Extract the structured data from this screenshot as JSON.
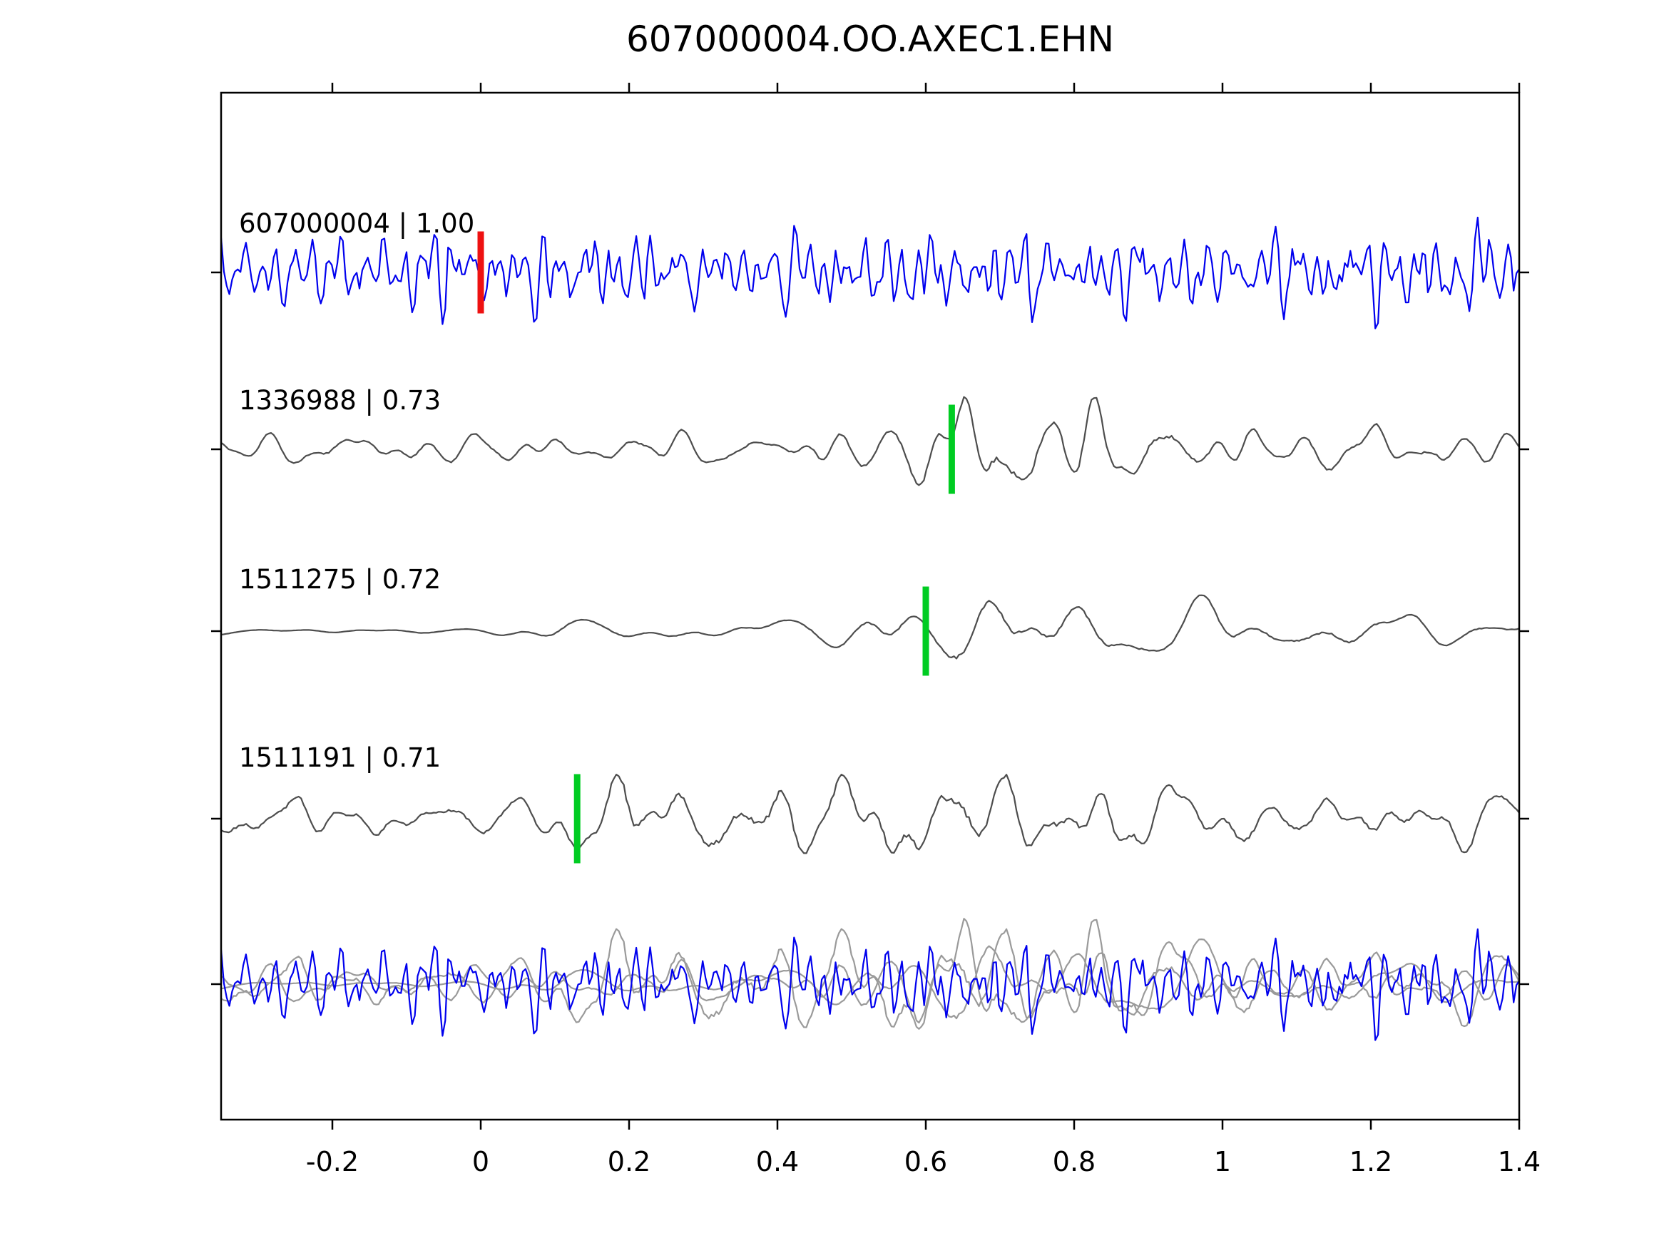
{
  "title": "607000004.OO.AXEC1.EHN",
  "chart_data": {
    "type": "line",
    "title": "607000004.OO.AXEC1.EHN",
    "xlabel": "",
    "ylabel": "",
    "grid": false,
    "legend": "none",
    "xlim": [
      -0.35,
      1.4
    ],
    "xticks": [
      -0.2,
      0,
      0.2,
      0.4,
      0.6,
      0.8,
      1,
      1.2,
      1.4
    ],
    "xtick_labels": [
      "-0.2",
      "0",
      "0.2",
      "0.4",
      "0.6",
      "0.8",
      "1",
      "1.2",
      "1.4"
    ],
    "colors": {
      "target_trace": "#0000ee",
      "template_trace": "#4d4d4d",
      "overlay_template": "#9a9a9a",
      "target_pick": "#ee1111",
      "template_pick": "#00cc22",
      "axis": "#000000"
    },
    "traces": [
      {
        "label": "607000004 | 1.00",
        "event_id": "607000004",
        "similarity": 1.0,
        "color": "#0000ee",
        "pick": {
          "x": 0.0,
          "color": "#ee1111"
        },
        "seed": 7,
        "points": 470,
        "rough": 0.35,
        "freqs": [
          20,
          30,
          42,
          55,
          70,
          85,
          100,
          115,
          130
        ],
        "amps": [
          0.4,
          0.6,
          0.8,
          1.0,
          1.0,
          0.9,
          0.75,
          0.6,
          0.45
        ],
        "envelope": [
          [
            -0.35,
            70
          ],
          [
            0.05,
            85
          ],
          [
            0.3,
            70
          ],
          [
            0.55,
            75
          ],
          [
            0.8,
            70
          ],
          [
            1.1,
            75
          ],
          [
            1.4,
            85
          ]
        ]
      },
      {
        "label": "1336988 | 0.73",
        "event_id": "1336988",
        "similarity": 0.73,
        "color": "#4d4d4d",
        "pick": {
          "x": 0.635,
          "color": "#00cc22"
        },
        "seed": 21,
        "points": 520,
        "rough": 0.06,
        "freqs": [
          9,
          13,
          18,
          24,
          31,
          39,
          48
        ],
        "amps": [
          0.5,
          0.8,
          1.0,
          1.0,
          0.8,
          0.55,
          0.3
        ],
        "envelope": [
          [
            -0.35,
            26
          ],
          [
            0.42,
            28
          ],
          [
            0.55,
            50
          ],
          [
            0.62,
            90
          ],
          [
            0.7,
            100
          ],
          [
            0.78,
            95
          ],
          [
            0.88,
            60
          ],
          [
            1.0,
            42
          ],
          [
            1.2,
            38
          ],
          [
            1.4,
            36
          ]
        ]
      },
      {
        "label": "1511275 | 0.72",
        "event_id": "1511275",
        "similarity": 0.72,
        "color": "#4d4d4d",
        "pick": {
          "x": 0.6,
          "color": "#00cc22"
        },
        "seed": 33,
        "points": 520,
        "rough": 0.04,
        "freqs": [
          6,
          9,
          13,
          18,
          24,
          30
        ],
        "amps": [
          0.6,
          1.0,
          1.0,
          0.8,
          0.5,
          0.3
        ],
        "envelope": [
          [
            -0.35,
            6
          ],
          [
            0.0,
            8
          ],
          [
            0.1,
            18
          ],
          [
            0.3,
            22
          ],
          [
            0.5,
            30
          ],
          [
            0.58,
            70
          ],
          [
            0.65,
            100
          ],
          [
            0.73,
            110
          ],
          [
            0.82,
            75
          ],
          [
            0.95,
            50
          ],
          [
            1.1,
            52
          ],
          [
            1.25,
            40
          ],
          [
            1.4,
            30
          ]
        ]
      },
      {
        "label": "1511191 | 0.71",
        "event_id": "1511191",
        "similarity": 0.71,
        "color": "#4d4d4d",
        "pick": {
          "x": 0.13,
          "color": "#00cc22"
        },
        "seed": 45,
        "points": 520,
        "rough": 0.09,
        "freqs": [
          8,
          12,
          17,
          23,
          30,
          38,
          47
        ],
        "amps": [
          0.6,
          0.9,
          1.0,
          0.9,
          0.65,
          0.45,
          0.25
        ],
        "envelope": [
          [
            -0.35,
            36
          ],
          [
            0.08,
            38
          ],
          [
            0.15,
            80
          ],
          [
            0.22,
            90
          ],
          [
            0.35,
            75
          ],
          [
            0.5,
            70
          ],
          [
            0.62,
            95
          ],
          [
            0.72,
            90
          ],
          [
            0.85,
            70
          ],
          [
            1.0,
            50
          ],
          [
            1.15,
            42
          ],
          [
            1.3,
            48
          ],
          [
            1.4,
            45
          ]
        ]
      }
    ],
    "overlay": {
      "members": [
        {
          "trace": 1,
          "color": "#9a9a9a",
          "scale": 1.25
        },
        {
          "trace": 2,
          "color": "#9a9a9a",
          "scale": 1.25
        },
        {
          "trace": 3,
          "color": "#9a9a9a",
          "scale": 1.25
        },
        {
          "trace": 0,
          "color": "#0000ee",
          "scale": 1.0
        }
      ]
    }
  }
}
